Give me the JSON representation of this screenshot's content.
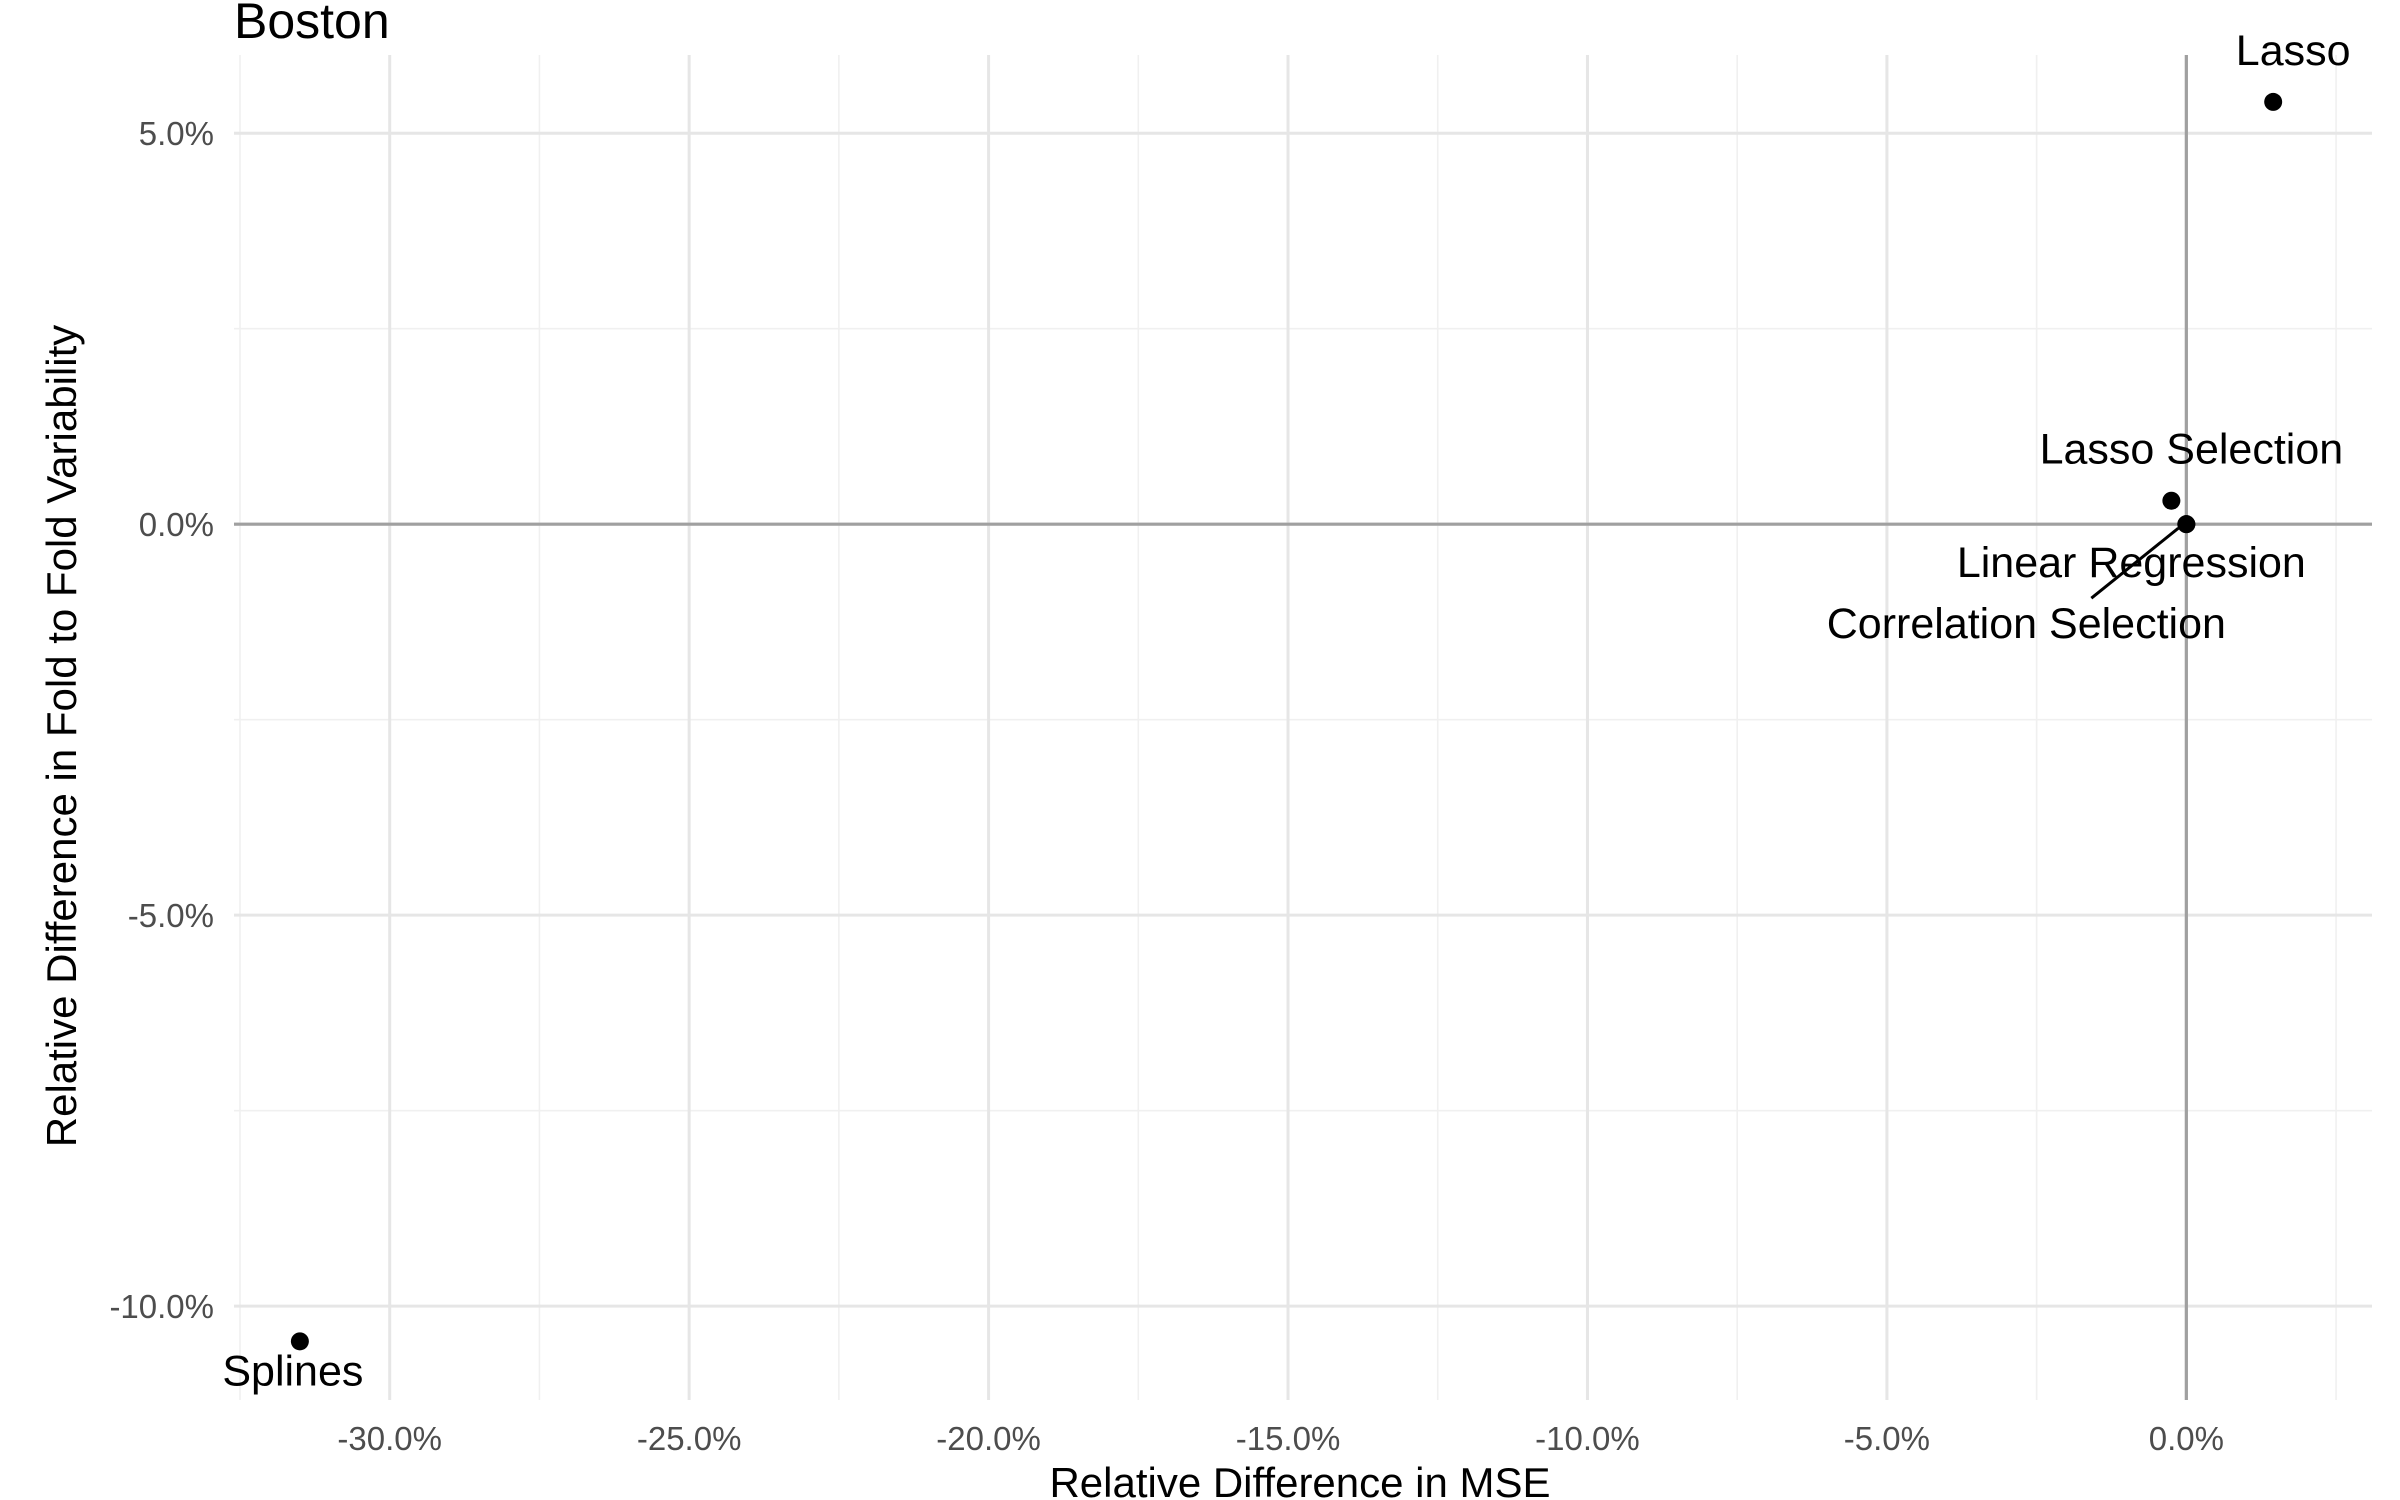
{
  "chart_data": {
    "type": "scatter",
    "title": "Boston",
    "xlabel": "Relative Difference in MSE",
    "ylabel": "Relative Difference in Fold to Fold Variability",
    "xlim": [
      -32.6,
      3.1
    ],
    "ylim": [
      -11.2,
      6.0
    ],
    "x_major_ticks": [
      -30,
      -25,
      -20,
      -15,
      -10,
      -5,
      0
    ],
    "x_tick_labels": [
      "-30.0%",
      "-25.0%",
      "-20.0%",
      "-15.0%",
      "-10.0%",
      "-5.0%",
      "0.0%"
    ],
    "x_minor_ticks": [
      -32.5,
      -27.5,
      -22.5,
      -17.5,
      -12.5,
      -7.5,
      -2.5,
      2.5
    ],
    "y_major_ticks": [
      -10,
      -5,
      0,
      5
    ],
    "y_tick_labels": [
      "-10.0%",
      "-5.0%",
      "0.0%",
      "5.0%"
    ],
    "y_minor_ticks": [
      -7.5,
      -2.5,
      2.5
    ],
    "reference_lines": {
      "x": 0,
      "y": 0
    },
    "grid": true,
    "legend": "none",
    "points": [
      {
        "label": "Lasso",
        "x": 1.45,
        "y": 5.4,
        "label_position": "above"
      },
      {
        "label": "Lasso Selection",
        "x": -0.25,
        "y": 0.3,
        "label_position": "above"
      },
      {
        "label": "Linear Regression",
        "x": 0.0,
        "y": 0.0,
        "label_position": "below"
      },
      {
        "label": "Correlation Selection",
        "x": 0.0,
        "y": 0.0,
        "label_position": "below-left",
        "leader_line": true
      },
      {
        "label": "Splines",
        "x": -31.5,
        "y": -10.45,
        "label_position": "below"
      }
    ]
  }
}
